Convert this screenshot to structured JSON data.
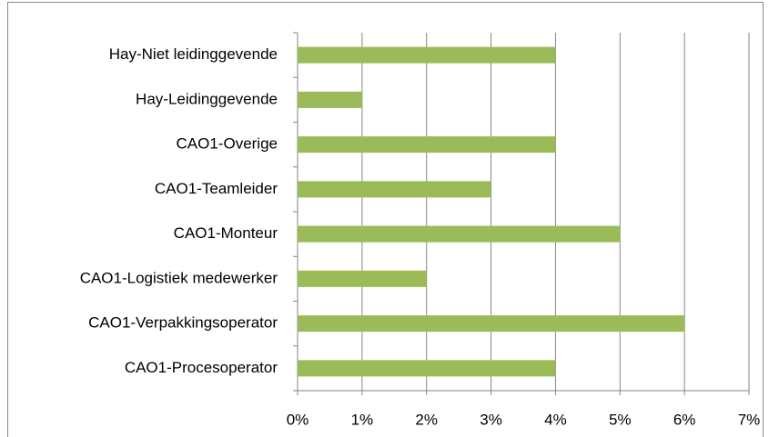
{
  "chart_data": {
    "type": "barh",
    "categories": [
      "Hay-Niet leidinggevende",
      "Hay-Leidinggevende",
      "CAO1-Overige",
      "CAO1-Teamleider",
      "CAO1-Monteur",
      "CAO1-Logistiek medewerker",
      "CAO1-Verpakkingsoperator",
      "CAO1-Procesoperator"
    ],
    "values": [
      4,
      1,
      4,
      3,
      5,
      2,
      6,
      4
    ],
    "color": "#9bbb59",
    "xlim": [
      0,
      7
    ],
    "xticks": [
      {
        "value": 0,
        "label": "0%"
      },
      {
        "value": 1,
        "label": "1%"
      },
      {
        "value": 2,
        "label": "2%"
      },
      {
        "value": 3,
        "label": "3%"
      },
      {
        "value": 4,
        "label": "4%"
      },
      {
        "value": 5,
        "label": "5%"
      },
      {
        "value": 6,
        "label": "6%"
      },
      {
        "value": 7,
        "label": "7%"
      }
    ],
    "grid": true
  }
}
